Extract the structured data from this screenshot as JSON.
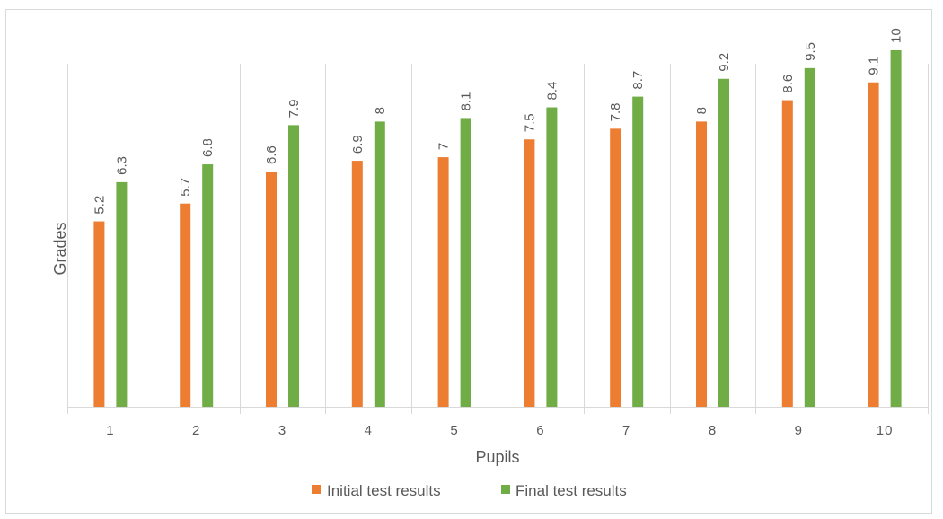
{
  "chart_data": {
    "type": "bar",
    "title": "",
    "xlabel": "Pupils",
    "ylabel": "Grades",
    "categories": [
      "1",
      "2",
      "3",
      "4",
      "5",
      "6",
      "7",
      "8",
      "9",
      "10"
    ],
    "series": [
      {
        "name": "Initial test results",
        "color": "#ED7D31",
        "values": [
          5.2,
          5.7,
          6.6,
          6.9,
          7,
          7.5,
          7.8,
          8,
          8.6,
          9.1
        ],
        "labels": [
          "5.2",
          "5.7",
          "6.6",
          "6.9",
          "7",
          "7.5",
          "7.8",
          "8",
          "8.6",
          "9.1"
        ]
      },
      {
        "name": "Final test results",
        "color": "#70AD47",
        "values": [
          6.3,
          6.8,
          7.9,
          8,
          8.1,
          8.4,
          8.7,
          9.2,
          9.5,
          10
        ],
        "labels": [
          "6.3",
          "6.8",
          "7.9",
          "8",
          "8.1",
          "8.4",
          "8.7",
          "9.2",
          "9.5",
          "10"
        ]
      }
    ],
    "ylim": [
      0,
      10
    ],
    "y_axis_visible": false,
    "vertical_gridlines": true,
    "horizontal_gridlines": false,
    "legend_position": "bottom",
    "data_labels": "rotated"
  }
}
